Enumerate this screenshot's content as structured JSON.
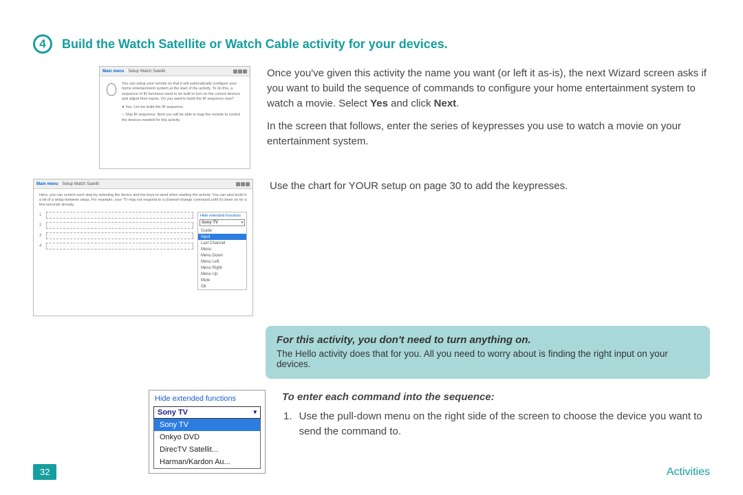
{
  "colors": {
    "accent": "#159e9e",
    "callout_bg": "#a9d8d8",
    "link": "#0b63c9",
    "select_bg": "#2d7de0",
    "text": "#424242"
  },
  "step": {
    "number": "4",
    "title": "Build the Watch Satellite or Watch Cable activity for your devices."
  },
  "para1": "Once you've given this activity the name you want (or left it as-is), the next Wizard screen asks if you want to build the sequence of commands to configure your home entertainment system to watch a movie. Select ",
  "para1_b1": "Yes",
  "para1_mid": " and click ",
  "para1_b2": "Next",
  "para1_end": ".",
  "para2": "In the screen that follows, enter the series of keypresses you use to watch a movie on your entertainment system.",
  "para3": "Use the chart for YOUR setup on page 30 to add the keypresses.",
  "shot_header": {
    "main_menu": "Main menu",
    "setup": "Setup Watch Satellit"
  },
  "shot1": {
    "body": "You can setup your remote so that it will automatically configure your home entertainment system at the start of the activity. To do this, a sequence of IR functions need to be built to turn on the correct devices and adjust their inputs. Do you want to build the IR sequence now?",
    "radio_yes": "Yes. Let me build the IR sequence.",
    "radio_skip": "Skip IR sequence. Next you will be able to map the remote to control the devices needed for this activity."
  },
  "shot2": {
    "intro": "Here, you can control each step by selecting the device and the keys to send when starting the activity. You can also build in a bit of a delay between steps. For example, your TV may not respond to a channel-change command until it's been on for a few seconds already.",
    "hide_ext": "Hide extended functions",
    "dd_label": "Sony TV",
    "menu": [
      "Guide",
      "Input",
      "Last Channel",
      "Menu",
      "Menu Down",
      "Menu Left",
      "Menu Right",
      "Menu Up",
      "Mute",
      "Ok"
    ],
    "selected_index": 1,
    "rows": [
      "1",
      "2",
      "3",
      "4"
    ]
  },
  "shot3": {
    "hide_ext": "Hide extended functions",
    "dd_label": "Sony TV",
    "options": [
      "Sony TV",
      "Onkyo DVD",
      "DirecTV Satellit...",
      "Harman/Kardon Au..."
    ],
    "selected_index": 0
  },
  "callout": {
    "title": "For this activity, you don't need to turn anything on.",
    "body": "The Hello activity does that for you. All you need to worry about is finding the right input on your devices."
  },
  "subhead": "To enter each command into the sequence:",
  "ol1_num": "1.",
  "ol1_text": "Use the pull-down menu on the right side of the screen to choose the device you want to send the command to.",
  "footer": {
    "page": "32",
    "section": "Activities"
  }
}
